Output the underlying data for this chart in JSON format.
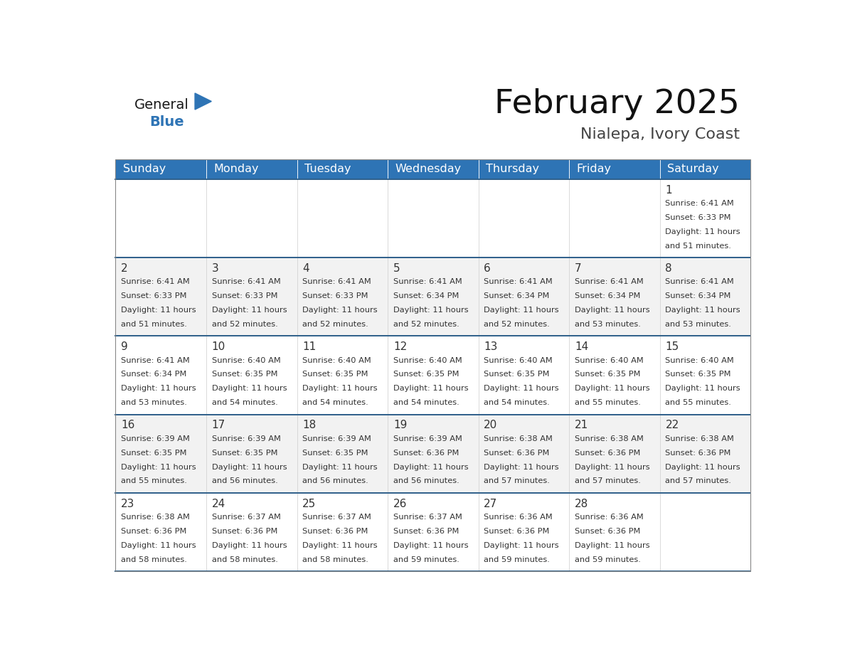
{
  "title": "February 2025",
  "subtitle": "Nialepa, Ivory Coast",
  "days_of_week": [
    "Sunday",
    "Monday",
    "Tuesday",
    "Wednesday",
    "Thursday",
    "Friday",
    "Saturday"
  ],
  "header_bg": "#2E74B5",
  "header_text": "#FFFFFF",
  "cell_bg": "#FFFFFF",
  "cell_alt_bg": "#F2F2F2",
  "cell_border": "#CCCCCC",
  "row_divider": "#2E5F8A",
  "day_num_color": "#333333",
  "text_color": "#333333",
  "title_color": "#111111",
  "subtitle_color": "#444444",
  "logo_black": "#1a1a1a",
  "logo_blue": "#2E74B5",
  "calendar_data": [
    [
      null,
      null,
      null,
      null,
      null,
      null,
      {
        "day": 1,
        "sunrise": "6:41 AM",
        "sunset": "6:33 PM",
        "daylight": "11 hours and 51 minutes."
      }
    ],
    [
      {
        "day": 2,
        "sunrise": "6:41 AM",
        "sunset": "6:33 PM",
        "daylight": "11 hours and 51 minutes."
      },
      {
        "day": 3,
        "sunrise": "6:41 AM",
        "sunset": "6:33 PM",
        "daylight": "11 hours and 52 minutes."
      },
      {
        "day": 4,
        "sunrise": "6:41 AM",
        "sunset": "6:33 PM",
        "daylight": "11 hours and 52 minutes."
      },
      {
        "day": 5,
        "sunrise": "6:41 AM",
        "sunset": "6:34 PM",
        "daylight": "11 hours and 52 minutes."
      },
      {
        "day": 6,
        "sunrise": "6:41 AM",
        "sunset": "6:34 PM",
        "daylight": "11 hours and 52 minutes."
      },
      {
        "day": 7,
        "sunrise": "6:41 AM",
        "sunset": "6:34 PM",
        "daylight": "11 hours and 53 minutes."
      },
      {
        "day": 8,
        "sunrise": "6:41 AM",
        "sunset": "6:34 PM",
        "daylight": "11 hours and 53 minutes."
      }
    ],
    [
      {
        "day": 9,
        "sunrise": "6:41 AM",
        "sunset": "6:34 PM",
        "daylight": "11 hours and 53 minutes."
      },
      {
        "day": 10,
        "sunrise": "6:40 AM",
        "sunset": "6:35 PM",
        "daylight": "11 hours and 54 minutes."
      },
      {
        "day": 11,
        "sunrise": "6:40 AM",
        "sunset": "6:35 PM",
        "daylight": "11 hours and 54 minutes."
      },
      {
        "day": 12,
        "sunrise": "6:40 AM",
        "sunset": "6:35 PM",
        "daylight": "11 hours and 54 minutes."
      },
      {
        "day": 13,
        "sunrise": "6:40 AM",
        "sunset": "6:35 PM",
        "daylight": "11 hours and 54 minutes."
      },
      {
        "day": 14,
        "sunrise": "6:40 AM",
        "sunset": "6:35 PM",
        "daylight": "11 hours and 55 minutes."
      },
      {
        "day": 15,
        "sunrise": "6:40 AM",
        "sunset": "6:35 PM",
        "daylight": "11 hours and 55 minutes."
      }
    ],
    [
      {
        "day": 16,
        "sunrise": "6:39 AM",
        "sunset": "6:35 PM",
        "daylight": "11 hours and 55 minutes."
      },
      {
        "day": 17,
        "sunrise": "6:39 AM",
        "sunset": "6:35 PM",
        "daylight": "11 hours and 56 minutes."
      },
      {
        "day": 18,
        "sunrise": "6:39 AM",
        "sunset": "6:35 PM",
        "daylight": "11 hours and 56 minutes."
      },
      {
        "day": 19,
        "sunrise": "6:39 AM",
        "sunset": "6:36 PM",
        "daylight": "11 hours and 56 minutes."
      },
      {
        "day": 20,
        "sunrise": "6:38 AM",
        "sunset": "6:36 PM",
        "daylight": "11 hours and 57 minutes."
      },
      {
        "day": 21,
        "sunrise": "6:38 AM",
        "sunset": "6:36 PM",
        "daylight": "11 hours and 57 minutes."
      },
      {
        "day": 22,
        "sunrise": "6:38 AM",
        "sunset": "6:36 PM",
        "daylight": "11 hours and 57 minutes."
      }
    ],
    [
      {
        "day": 23,
        "sunrise": "6:38 AM",
        "sunset": "6:36 PM",
        "daylight": "11 hours and 58 minutes."
      },
      {
        "day": 24,
        "sunrise": "6:37 AM",
        "sunset": "6:36 PM",
        "daylight": "11 hours and 58 minutes."
      },
      {
        "day": 25,
        "sunrise": "6:37 AM",
        "sunset": "6:36 PM",
        "daylight": "11 hours and 58 minutes."
      },
      {
        "day": 26,
        "sunrise": "6:37 AM",
        "sunset": "6:36 PM",
        "daylight": "11 hours and 59 minutes."
      },
      {
        "day": 27,
        "sunrise": "6:36 AM",
        "sunset": "6:36 PM",
        "daylight": "11 hours and 59 minutes."
      },
      {
        "day": 28,
        "sunrise": "6:36 AM",
        "sunset": "6:36 PM",
        "daylight": "11 hours and 59 minutes."
      },
      null
    ]
  ]
}
